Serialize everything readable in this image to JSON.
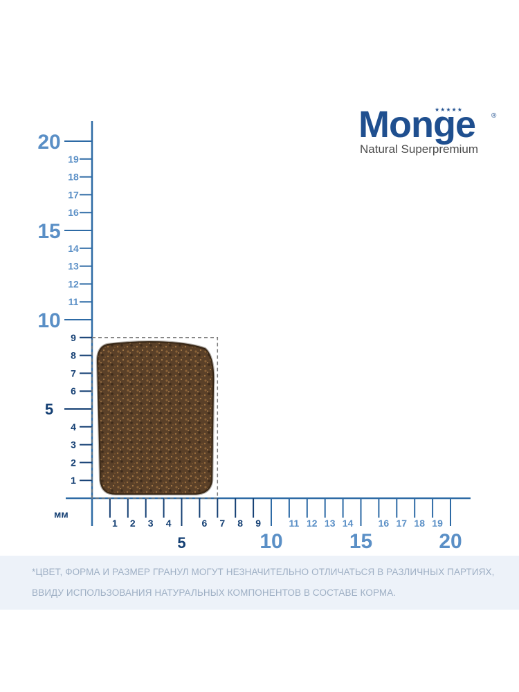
{
  "brand": {
    "name": "Monge",
    "tagline": "Natural Superpremium",
    "reg_mark": "®",
    "stars": "★★★★★",
    "color": "#1f4f8f"
  },
  "ruler": {
    "unit": "мм",
    "minor_labels": [
      "1",
      "2",
      "3",
      "4",
      "6",
      "7",
      "8",
      "9",
      "11",
      "12",
      "13",
      "14",
      "16",
      "17",
      "18",
      "19"
    ],
    "major_labels": [
      "5",
      "10",
      "15",
      "20"
    ],
    "kibble_size_mm": {
      "width": 7,
      "height": 9
    },
    "colors": {
      "axis": "#2d6aa5",
      "dark_labels": "#143f73",
      "light_labels": "#5a8fc6"
    }
  },
  "disclaimer": {
    "line1": "*ЦВЕТ, ФОРМА И РАЗМЕР ГРАНУЛ МОГУТ НЕЗНАЧИТЕЛЬНО ОТЛИЧАТЬСЯ В РАЗЛИЧНЫХ ПАРТИЯХ,",
    "line2": "ВВИДУ ИСПОЛЬЗОВАНИЯ НАТУРАЛЬНЫХ КОМПОНЕНТОВ В СОСТАВЕ КОРМА."
  }
}
